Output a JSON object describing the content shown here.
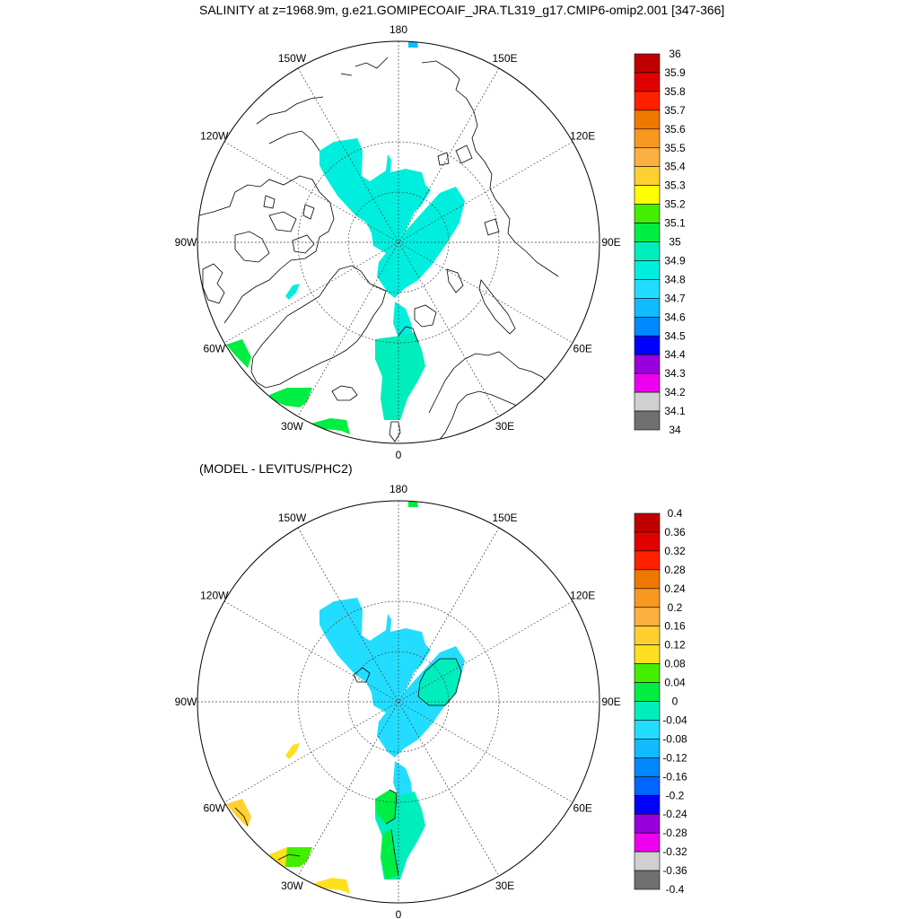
{
  "figure": {
    "title": "SALINITY at z=1968.9m, g.e21.GOMIPECOAIF_JRA.TL319_g17.CMIP6-omip2.001 [347-366]",
    "subtitle": "(MODEL - LEVITUS/PHC2)"
  },
  "panels": [
    {
      "name": "model-salinity",
      "longitude_labels": [
        {
          "lon": 180,
          "text": "180"
        },
        {
          "lon": -150,
          "text": "150W"
        },
        {
          "lon": 150,
          "text": "150E"
        },
        {
          "lon": -120,
          "text": "120W"
        },
        {
          "lon": 120,
          "text": "120E"
        },
        {
          "lon": -90,
          "text": "90W"
        },
        {
          "lon": 90,
          "text": "90E"
        },
        {
          "lon": -60,
          "text": "60W"
        },
        {
          "lon": 60,
          "text": "60E"
        },
        {
          "lon": -30,
          "text": "30W"
        },
        {
          "lon": 30,
          "text": "30E"
        },
        {
          "lon": 0,
          "text": "0"
        }
      ],
      "colorbar": {
        "labels": [
          "36",
          "35.9",
          "35.8",
          "35.7",
          "35.6",
          "35.5",
          "35.4",
          "35.3",
          "35.2",
          "35.1",
          "35",
          "34.9",
          "34.8",
          "34.7",
          "34.6",
          "34.5",
          "34.4",
          "34.3",
          "34.2",
          "34.1",
          "34"
        ],
        "colors": [
          "#c00000",
          "#e00000",
          "#ff2000",
          "#f07800",
          "#f89820",
          "#fcb040",
          "#ffd030",
          "#ffff00",
          "#44ee00",
          "#00ee44",
          "#00eebb",
          "#00eedd",
          "#22ddff",
          "#11bbff",
          "#0088ff",
          "#0000ff",
          "#9900dd",
          "#ee00ee",
          "#d0d0d0",
          "#707070"
        ]
      }
    },
    {
      "name": "model-minus-obs",
      "longitude_labels": [
        {
          "lon": 180,
          "text": "180"
        },
        {
          "lon": -150,
          "text": "150W"
        },
        {
          "lon": 150,
          "text": "150E"
        },
        {
          "lon": -120,
          "text": "120W"
        },
        {
          "lon": 120,
          "text": "120E"
        },
        {
          "lon": -90,
          "text": "90W"
        },
        {
          "lon": 90,
          "text": "90E"
        },
        {
          "lon": -60,
          "text": "60W"
        },
        {
          "lon": 60,
          "text": "60E"
        },
        {
          "lon": -30,
          "text": "30W"
        },
        {
          "lon": 30,
          "text": "30E"
        },
        {
          "lon": 0,
          "text": "0"
        }
      ],
      "colorbar": {
        "labels": [
          "0.4",
          "0.36",
          "0.32",
          "0.28",
          "0.24",
          "0.2",
          "0.16",
          "0.12",
          "0.08",
          "0.04",
          "0",
          "-0.04",
          "-0.08",
          "-0.12",
          "-0.16",
          "-0.2",
          "-0.24",
          "-0.28",
          "-0.32",
          "-0.36",
          "-0.4"
        ],
        "colors": [
          "#c00000",
          "#e00000",
          "#ff2000",
          "#f07800",
          "#f89820",
          "#fcb040",
          "#ffd030",
          "#ffe020",
          "#44ee00",
          "#00ee44",
          "#00eebb",
          "#22ddff",
          "#11bbff",
          "#0088ff",
          "#0066ff",
          "#0000ff",
          "#9900dd",
          "#ee00ee",
          "#d0d0d0",
          "#707070"
        ]
      }
    }
  ],
  "colors": {
    "coast": "#000000",
    "ocean_fill_top": "#00eedd",
    "ocean_fill_top_south": "#00eebb",
    "green": "#00ee44",
    "ocean_fill_bottom": "#00eedd",
    "yellow": "#ffe020",
    "lime": "#44ee00",
    "blue_small": "#11bbff"
  }
}
